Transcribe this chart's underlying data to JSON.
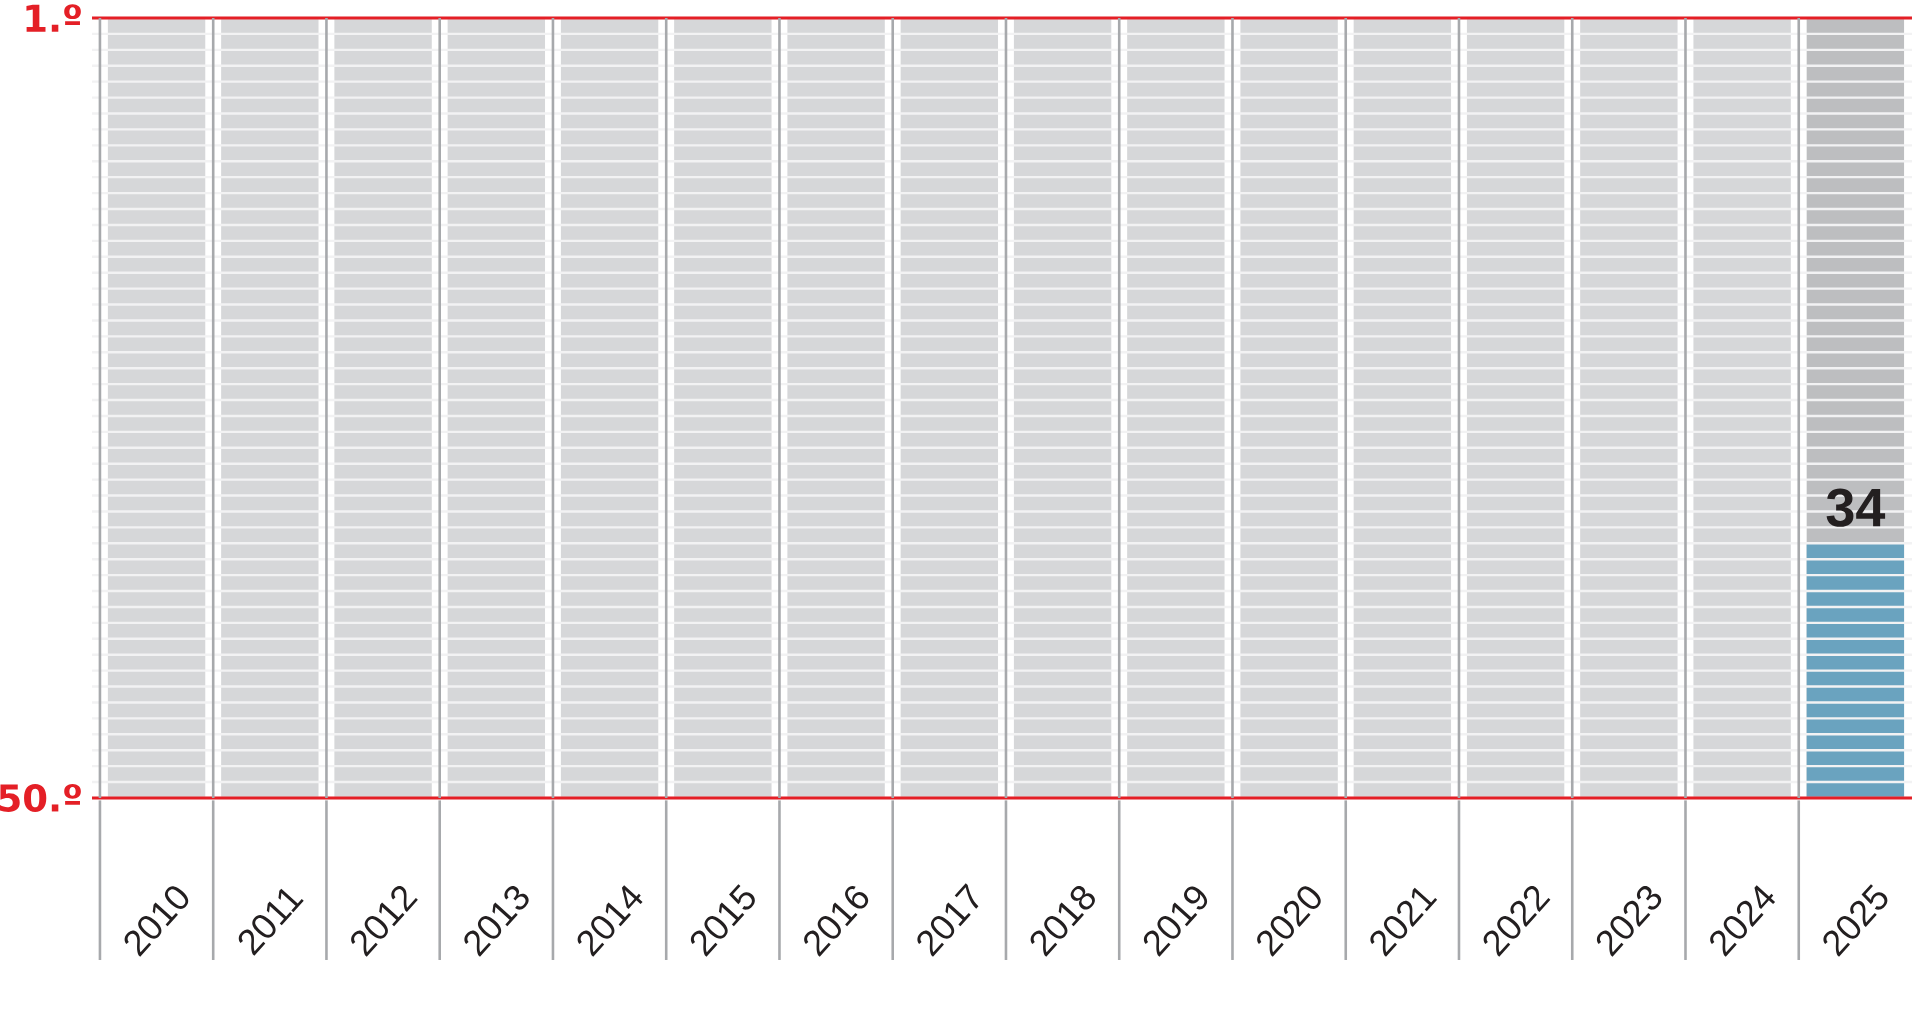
{
  "chart_data": {
    "type": "bar",
    "categories": [
      "2010",
      "2011",
      "2012",
      "2013",
      "2014",
      "2015",
      "2016",
      "2017",
      "2018",
      "2019",
      "2020",
      "2021",
      "2022",
      "2023",
      "2024",
      "2025"
    ],
    "series": [
      {
        "colors": [
          "#d6d7d9",
          "#d6d7d9",
          "#d6d7d9",
          "#d6d7d9",
          "#d6d7d9",
          "#d6d7d9",
          "#d6d7d9",
          "#d6d7d9",
          "#d6d7d9",
          "#d6d7d9",
          "#d6d7d9",
          "#d6d7d9",
          "#d6d7d9",
          "#d6d7d9",
          "#d6d7d9",
          "#bdbec0"
        ],
        "base": [
          50,
          50,
          50,
          50,
          50,
          50,
          50,
          50,
          50,
          50,
          50,
          50,
          50,
          50,
          50,
          50
        ],
        "values": [
          -49,
          -49,
          -49,
          -49,
          -49,
          -49,
          -49,
          -49,
          -49,
          -49,
          -49,
          -49,
          -49,
          -49,
          -49,
          -49
        ]
      },
      {
        "color": "#6aa3bf",
        "base": [
          null,
          null,
          null,
          null,
          null,
          null,
          null,
          null,
          null,
          null,
          null,
          null,
          null,
          null,
          null,
          50
        ],
        "values": [
          null,
          null,
          null,
          null,
          null,
          null,
          null,
          null,
          null,
          null,
          null,
          null,
          null,
          null,
          null,
          -16
        ]
      }
    ],
    "annotations": [
      {
        "text": "34",
        "x": "2025",
        "y": 34
      }
    ],
    "ylim": [
      50,
      1
    ],
    "yticks": [
      {
        "value": 1,
        "label": "1.º"
      },
      {
        "value": 2,
        "label": null
      },
      {
        "value": 3,
        "label": null
      },
      {
        "value": 4,
        "label": null
      },
      {
        "value": 5,
        "label": null
      },
      {
        "value": 6,
        "label": null
      },
      {
        "value": 7,
        "label": null
      },
      {
        "value": 8,
        "label": null
      },
      {
        "value": 9,
        "label": null
      },
      {
        "value": 10,
        "label": null
      },
      {
        "value": 11,
        "label": null
      },
      {
        "value": 12,
        "label": null
      },
      {
        "value": 13,
        "label": null
      },
      {
        "value": 14,
        "label": null
      },
      {
        "value": 15,
        "label": null
      },
      {
        "value": 16,
        "label": null
      },
      {
        "value": 17,
        "label": null
      },
      {
        "value": 18,
        "label": null
      },
      {
        "value": 19,
        "label": null
      },
      {
        "value": 20,
        "label": null
      },
      {
        "value": 21,
        "label": null
      },
      {
        "value": 22,
        "label": null
      },
      {
        "value": 23,
        "label": null
      },
      {
        "value": 24,
        "label": null
      },
      {
        "value": 25,
        "label": null
      },
      {
        "value": 26,
        "label": null
      },
      {
        "value": 27,
        "label": null
      },
      {
        "value": 28,
        "label": null
      },
      {
        "value": 29,
        "label": null
      },
      {
        "value": 30,
        "label": null
      },
      {
        "value": 31,
        "label": null
      },
      {
        "value": 32,
        "label": null
      },
      {
        "value": 33,
        "label": null
      },
      {
        "value": 34,
        "label": null
      },
      {
        "value": 35,
        "label": null
      },
      {
        "value": 36,
        "label": null
      },
      {
        "value": 37,
        "label": null
      },
      {
        "value": 38,
        "label": null
      },
      {
        "value": 39,
        "label": null
      },
      {
        "value": 40,
        "label": null
      },
      {
        "value": 41,
        "label": null
      },
      {
        "value": 42,
        "label": null
      },
      {
        "value": 43,
        "label": null
      },
      {
        "value": 44,
        "label": null
      },
      {
        "value": 45,
        "label": null
      },
      {
        "value": 46,
        "label": null
      },
      {
        "value": 47,
        "label": null
      },
      {
        "value": 48,
        "label": null
      },
      {
        "value": 49,
        "label": null
      },
      {
        "value": 50,
        "label": "50.º"
      }
    ],
    "grid": true
  }
}
